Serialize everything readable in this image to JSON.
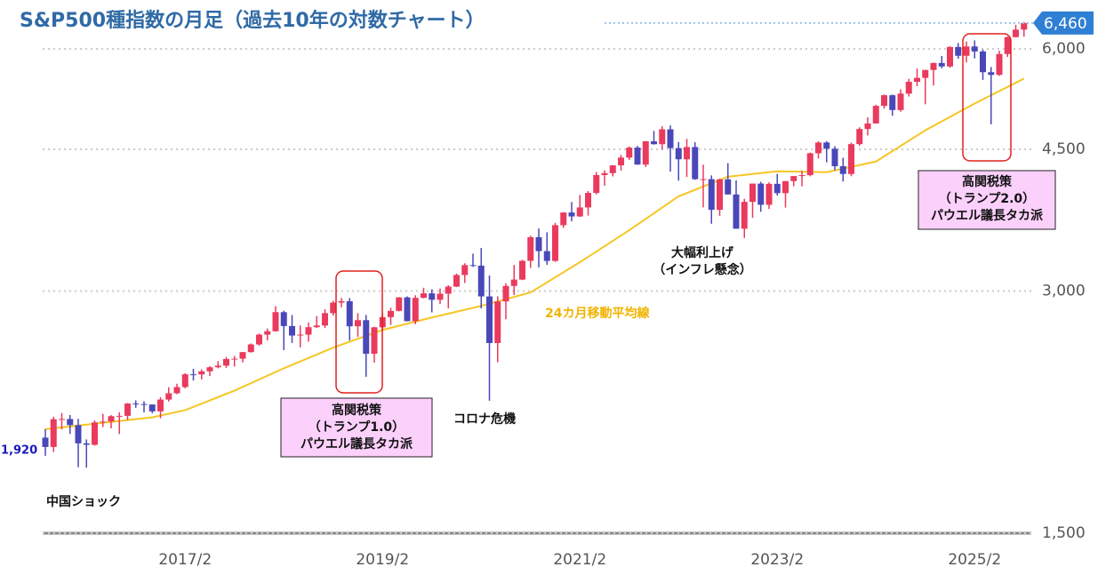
{
  "chart_data": {
    "type": "candlestick",
    "title": "S&P500種指数の月足（過去10年の対数チャート）",
    "x": [
      "2015/9",
      "2015/10",
      "2015/11",
      "2015/12",
      "2016/1",
      "2016/2",
      "2016/3",
      "2016/4",
      "2016/5",
      "2016/6",
      "2016/7",
      "2016/8",
      "2016/9",
      "2016/10",
      "2016/11",
      "2016/12",
      "2017/1",
      "2017/2",
      "2017/3",
      "2017/4",
      "2017/5",
      "2017/6",
      "2017/7",
      "2017/8",
      "2017/9",
      "2017/10",
      "2017/11",
      "2017/12",
      "2018/1",
      "2018/2",
      "2018/3",
      "2018/4",
      "2018/5",
      "2018/6",
      "2018/7",
      "2018/8",
      "2018/9",
      "2018/10",
      "2018/11",
      "2018/12",
      "2019/1",
      "2019/2",
      "2019/3",
      "2019/4",
      "2019/5",
      "2019/6",
      "2019/7",
      "2019/8",
      "2019/9",
      "2019/10",
      "2019/11",
      "2019/12",
      "2020/1",
      "2020/2",
      "2020/3",
      "2020/4",
      "2020/5",
      "2020/6",
      "2020/7",
      "2020/8",
      "2020/9",
      "2020/10",
      "2020/11",
      "2020/12",
      "2021/1",
      "2021/2",
      "2021/3",
      "2021/4",
      "2021/5",
      "2021/6",
      "2021/7",
      "2021/8",
      "2021/9",
      "2021/10",
      "2021/11",
      "2021/12",
      "2022/1",
      "2022/2",
      "2022/3",
      "2022/4",
      "2022/5",
      "2022/6",
      "2022/7",
      "2022/8",
      "2022/9",
      "2022/10",
      "2022/11",
      "2022/12",
      "2023/1",
      "2023/2",
      "2023/3",
      "2023/4",
      "2023/5",
      "2023/6",
      "2023/7",
      "2023/8",
      "2023/9",
      "2023/10",
      "2023/11",
      "2023/12",
      "2024/1",
      "2024/2",
      "2024/3",
      "2024/4",
      "2024/5",
      "2024/6",
      "2024/7",
      "2024/8",
      "2024/9",
      "2024/10",
      "2024/11",
      "2024/12",
      "2025/1",
      "2025/2",
      "2025/3",
      "2025/4",
      "2025/5",
      "2025/6",
      "2025/7",
      "2025/8"
    ],
    "open": [
      1972,
      1920,
      2079,
      2080,
      2044,
      1940,
      1932,
      2060,
      2065,
      2097,
      2099,
      2174,
      2171,
      2168,
      2126,
      2199,
      2239,
      2279,
      2364,
      2363,
      2384,
      2412,
      2423,
      2470,
      2472,
      2519,
      2575,
      2648,
      2674,
      2824,
      2714,
      2641,
      2648,
      2705,
      2718,
      2816,
      2902,
      2914,
      2712,
      2760,
      2507,
      2704,
      2784,
      2834,
      2946,
      2752,
      2942,
      2980,
      2926,
      2977,
      3038,
      3141,
      3231,
      3226,
      2954,
      2585,
      2912,
      3044,
      3100,
      3271,
      3500,
      3363,
      3270,
      3622,
      3756,
      3714,
      3811,
      3973,
      4181,
      4204,
      4298,
      4395,
      4523,
      4308,
      4605,
      4567,
      4766,
      4516,
      4374,
      4530,
      4132,
      4132,
      3785,
      4130,
      3955,
      3586,
      3872,
      4080,
      3840,
      4077,
      3970,
      4109,
      4169,
      4180,
      4450,
      4589,
      4508,
      4288,
      4194,
      4568,
      4770,
      4846,
      5096,
      5254,
      5036,
      5278,
      5460,
      5522,
      5648,
      5762,
      5705,
      6032,
      5882,
      6041,
      5955,
      5612,
      5569,
      5912,
      6205,
      6339
    ],
    "high": [
      2021,
      2094,
      2116,
      2104,
      2081,
      1962,
      2072,
      2111,
      2103,
      2120,
      2178,
      2194,
      2188,
      2169,
      2214,
      2278,
      2301,
      2371,
      2401,
      2398,
      2419,
      2454,
      2484,
      2491,
      2519,
      2582,
      2657,
      2695,
      2873,
      2836,
      2801,
      2718,
      2742,
      2792,
      2848,
      2917,
      2941,
      2940,
      2816,
      2801,
      2708,
      2814,
      2860,
      2949,
      2954,
      2964,
      3028,
      3014,
      3022,
      3050,
      3154,
      3248,
      3338,
      3394,
      3136,
      2955,
      3068,
      3233,
      3280,
      3514,
      3588,
      3549,
      3646,
      3760,
      3870,
      3950,
      3994,
      4218,
      4238,
      4302,
      4429,
      4537,
      4546,
      4608,
      4744,
      4808,
      4819,
      4595,
      4637,
      4593,
      4307,
      4177,
      4140,
      4325,
      4119,
      3906,
      4080,
      4101,
      4095,
      4195,
      4111,
      4170,
      4231,
      4459,
      4607,
      4607,
      4541,
      4393,
      4587,
      4794,
      4932,
      5112,
      5265,
      5264,
      5342,
      5506,
      5669,
      5651,
      5768,
      5878,
      6044,
      6100,
      6128,
      6147,
      5987,
      5696,
      5968,
      6215,
      6428,
      6481
    ],
    "low": [
      1872,
      1893,
      2019,
      1993,
      1812,
      1810,
      1927,
      2033,
      2025,
      1992,
      2074,
      2148,
      2120,
      2114,
      2084,
      2187,
      2233,
      2271,
      2322,
      2329,
      2352,
      2405,
      2407,
      2417,
      2446,
      2515,
      2566,
      2605,
      2670,
      2533,
      2586,
      2553,
      2595,
      2699,
      2698,
      2796,
      2864,
      2604,
      2631,
      2347,
      2444,
      2681,
      2722,
      2830,
      2751,
      2728,
      2938,
      2822,
      2891,
      2855,
      3034,
      3070,
      3215,
      2855,
      2192,
      2447,
      2767,
      2966,
      3095,
      3205,
      3210,
      3234,
      3262,
      3595,
      3662,
      3708,
      3723,
      3955,
      4056,
      4165,
      4233,
      4367,
      4306,
      4279,
      4561,
      4496,
      4223,
      4115,
      4157,
      4124,
      3811,
      3637,
      3721,
      3955,
      3585,
      3492,
      3699,
      3764,
      3794,
      3943,
      3809,
      4049,
      4048,
      4166,
      4385,
      4335,
      4238,
      4104,
      4167,
      4547,
      4683,
      4846,
      5056,
      4954,
      5012,
      5235,
      5390,
      5120,
      5402,
      5675,
      5684,
      5832,
      5773,
      5837,
      5489,
      4835,
      5553,
      5862,
      6198,
      6212
    ],
    "close": [
      1920,
      2079,
      2080,
      2044,
      1940,
      1932,
      2060,
      2065,
      2097,
      2099,
      2174,
      2171,
      2168,
      2126,
      2199,
      2239,
      2279,
      2364,
      2363,
      2384,
      2412,
      2423,
      2470,
      2472,
      2519,
      2575,
      2648,
      2674,
      2824,
      2714,
      2641,
      2648,
      2705,
      2718,
      2816,
      2902,
      2914,
      2712,
      2760,
      2507,
      2704,
      2784,
      2834,
      2946,
      2752,
      2942,
      2980,
      2926,
      2977,
      3038,
      3141,
      3231,
      3226,
      2954,
      2585,
      2912,
      3044,
      3100,
      3271,
      3500,
      3363,
      3270,
      3622,
      3756,
      3714,
      3811,
      3973,
      4181,
      4204,
      4298,
      4395,
      4523,
      4308,
      4605,
      4567,
      4766,
      4516,
      4374,
      4530,
      4132,
      4132,
      3785,
      4130,
      3955,
      3586,
      3872,
      4080,
      3840,
      4077,
      3970,
      4109,
      4169,
      4180,
      4450,
      4589,
      4508,
      4288,
      4194,
      4568,
      4770,
      4846,
      5096,
      5254,
      5036,
      5278,
      5460,
      5522,
      5648,
      5762,
      5705,
      6032,
      5882,
      6041,
      5955,
      5612,
      5569,
      5912,
      6205,
      6339,
      6460
    ],
    "up_color": "#ea3a5e",
    "down_color": "#4a48b8",
    "moving_average": {
      "label": "24カ月移動平均線",
      "color": "#f6c624",
      "x": [
        "2015/9",
        "2016/10",
        "2017/2",
        "2017/8",
        "2018/2",
        "2018/8",
        "2019/2",
        "2019/8",
        "2020/2",
        "2020/8",
        "2021/2",
        "2021/8",
        "2022/2",
        "2022/8",
        "2023/2",
        "2023/8",
        "2024/2",
        "2024/8",
        "2025/2",
        "2025/8"
      ],
      "values": [
        2020,
        2090,
        2133,
        2256,
        2405,
        2551,
        2684,
        2781,
        2875,
        2988,
        3258,
        3570,
        3934,
        4161,
        4226,
        4215,
        4346,
        4752,
        5130,
        5510
      ]
    },
    "log_scale": true,
    "ylim": [
      1500,
      6900
    ],
    "yticks": [
      {
        "value": 1500,
        "label": "1,500"
      },
      {
        "value": 3000,
        "label": "3,000"
      },
      {
        "value": 4500,
        "label": "4,500"
      },
      {
        "value": 6000,
        "label": "6,000"
      }
    ],
    "xticks": [
      "2017/2",
      "2019/2",
      "2021/2",
      "2023/2",
      "2025/2"
    ],
    "grid": true,
    "price_labels": [
      {
        "value": 1920,
        "label": "1,920"
      },
      {
        "value": 6460,
        "label": "6,460"
      }
    ],
    "annotations": [
      {
        "lines": [
          "中国ショック"
        ]
      },
      {
        "lines": [
          "高関税策",
          "（トランプ1.0）",
          "パウエル議長タカ派"
        ]
      },
      {
        "lines": [
          "コロナ危機"
        ]
      },
      {
        "lines": [
          "大幅利上げ",
          "（インフレ懸念）"
        ]
      },
      {
        "lines": [
          "高関税策",
          "（トランプ2.0）",
          "パウエル議長タカ派"
        ]
      }
    ]
  }
}
